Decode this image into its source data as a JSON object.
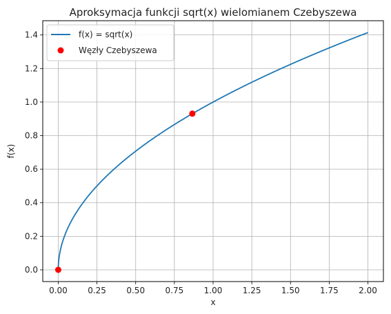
{
  "chart_data": {
    "type": "line",
    "title": "Aproksymacja funkcji sqrt(x) wielomianem Czebyszewa",
    "xlabel": "x",
    "ylabel": "f(x)",
    "xlim": [
      -0.1,
      2.1
    ],
    "ylim": [
      -0.07,
      1.485
    ],
    "x_ticks": [
      "0.00",
      "0.25",
      "0.50",
      "0.75",
      "1.00",
      "1.25",
      "1.50",
      "1.75",
      "2.00"
    ],
    "y_ticks": [
      "0.0",
      "0.2",
      "0.4",
      "0.6",
      "0.8",
      "1.0",
      "1.2",
      "1.4"
    ],
    "grid": true,
    "legend_position": "top-left",
    "series": [
      {
        "name": "f(x) = sqrt(x)",
        "kind": "line",
        "function": "sqrt",
        "x_range": [
          0,
          2
        ],
        "color": "#1f77b4"
      },
      {
        "name": "Węzły Czebyszewa",
        "kind": "scatter",
        "color": "#ff0000",
        "points": [
          {
            "x": 0.0,
            "y": 0.0
          },
          {
            "x": 0.866,
            "y": 0.931
          }
        ]
      }
    ]
  }
}
